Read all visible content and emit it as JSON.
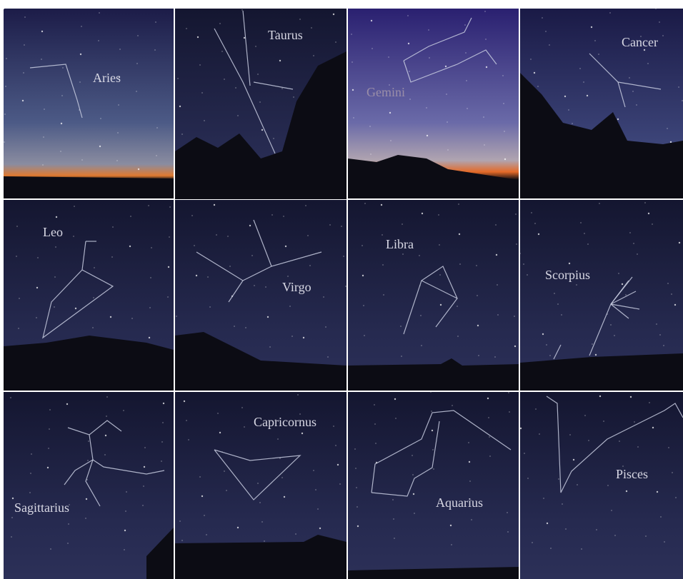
{
  "panels": [
    {
      "label": "Aries"
    },
    {
      "label": "Taurus"
    },
    {
      "label": "Gemini"
    },
    {
      "label": "Cancer"
    },
    {
      "label": "Leo"
    },
    {
      "label": "Virgo"
    },
    {
      "label": "Libra"
    },
    {
      "label": "Scorpius"
    },
    {
      "label": "Sagittarius"
    },
    {
      "label": "Capricornus"
    },
    {
      "label": "Aquarius"
    },
    {
      "label": "Pisces"
    }
  ]
}
